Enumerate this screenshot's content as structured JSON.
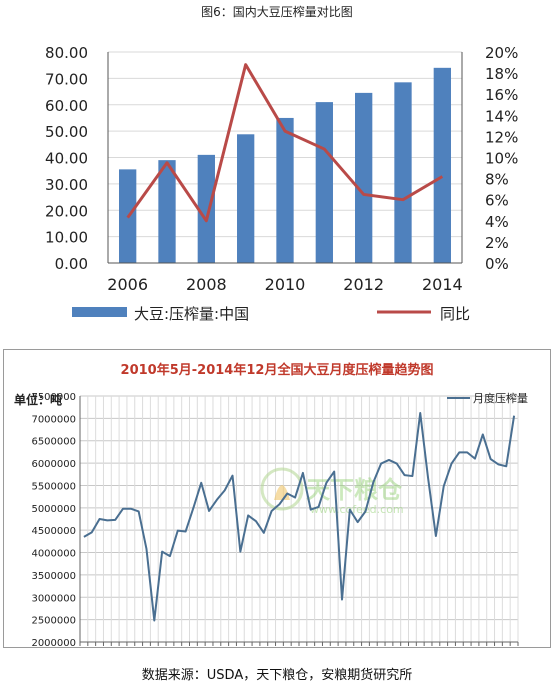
{
  "figure_caption": "图6：国内大豆压榨量对比图",
  "source_note": "数据来源：USDA，天下粮仓，安粮期货研究所",
  "chart_data": [
    {
      "type": "bar+line",
      "x": [
        2006,
        2007,
        2008,
        2009,
        2010,
        2011,
        2012,
        2013,
        2014
      ],
      "x_tick_labels": [
        "2006",
        "2008",
        "2010",
        "2012",
        "2014"
      ],
      "y_left_ticks": [
        "0.00",
        "10.00",
        "20.00",
        "30.00",
        "40.00",
        "50.00",
        "60.00",
        "70.00",
        "80.00"
      ],
      "y_right_ticks": [
        "0%",
        "2%",
        "4%",
        "6%",
        "8%",
        "10%",
        "12%",
        "14%",
        "16%",
        "18%",
        "20%"
      ],
      "ylim_left": [
        0,
        80
      ],
      "ylim_right": [
        0,
        20
      ],
      "grid": true,
      "legend_position": "bottom",
      "series": [
        {
          "name": "大豆:压榨量:中国",
          "kind": "bar",
          "axis": "left",
          "color": "#4f81bd",
          "values": [
            35.5,
            39.0,
            41.0,
            48.8,
            55.0,
            61.0,
            64.5,
            68.5,
            74.0
          ]
        },
        {
          "name": "同比",
          "kind": "line",
          "axis": "right",
          "color": "#b94a48",
          "values": [
            4.3,
            9.5,
            4.0,
            18.8,
            12.5,
            10.8,
            6.5,
            6.0,
            8.2
          ]
        }
      ]
    },
    {
      "type": "line",
      "title": "2010年5月-2014年12月全国大豆月度压榨量趋势图",
      "unit_label": "单位：吨",
      "legend_position": "top-right",
      "grid": true,
      "ylim": [
        2000000,
        7500000
      ],
      "y_ticks": [
        "2000000",
        "2500000",
        "3000000",
        "3500000",
        "4000000",
        "4500000",
        "5000000",
        "5500000",
        "6000000",
        "6500000",
        "7000000",
        "7500000"
      ],
      "x": [
        "2010-05",
        "2010-06",
        "2010-07",
        "2010-08",
        "2010-09",
        "2010-10",
        "2010-11",
        "2010-12",
        "2011-01",
        "2011-02",
        "2011-03",
        "2011-04",
        "2011-05",
        "2011-06",
        "2011-07",
        "2011-08",
        "2011-09",
        "2011-10",
        "2011-11",
        "2011-12",
        "2012-01",
        "2012-02",
        "2012-03",
        "2012-04",
        "2012-05",
        "2012-06",
        "2012-07",
        "2012-08",
        "2012-09",
        "2012-10",
        "2012-11",
        "2012-12",
        "2013-01",
        "2013-02",
        "2013-03",
        "2013-04",
        "2013-05",
        "2013-06",
        "2013-07",
        "2013-08",
        "2013-09",
        "2013-10",
        "2013-11",
        "2013-12",
        "2014-01",
        "2014-02",
        "2014-03",
        "2014-04",
        "2014-05",
        "2014-06",
        "2014-07",
        "2014-08",
        "2014-09",
        "2014-10",
        "2014-11",
        "2014-12"
      ],
      "series": [
        {
          "name": "月度压榨量",
          "color": "#4a6f91",
          "values": [
            4350000,
            4450000,
            4750000,
            4720000,
            4730000,
            4980000,
            4980000,
            4920000,
            4080000,
            2480000,
            4020000,
            3920000,
            4490000,
            4470000,
            5000000,
            5560000,
            4930000,
            5180000,
            5390000,
            5720000,
            4020000,
            4830000,
            4700000,
            4440000,
            4930000,
            5080000,
            5320000,
            5230000,
            5780000,
            4960000,
            5020000,
            5560000,
            5810000,
            2950000,
            4960000,
            4680000,
            4920000,
            5570000,
            5990000,
            6070000,
            5990000,
            5730000,
            5710000,
            7120000,
            5670000,
            4370000,
            5480000,
            5990000,
            6240000,
            6240000,
            6100000,
            6640000,
            6090000,
            5970000,
            5930000,
            7060000
          ]
        }
      ],
      "watermark": {
        "brand": "天下粮仓",
        "url": "www.cofeed.com"
      }
    }
  ]
}
